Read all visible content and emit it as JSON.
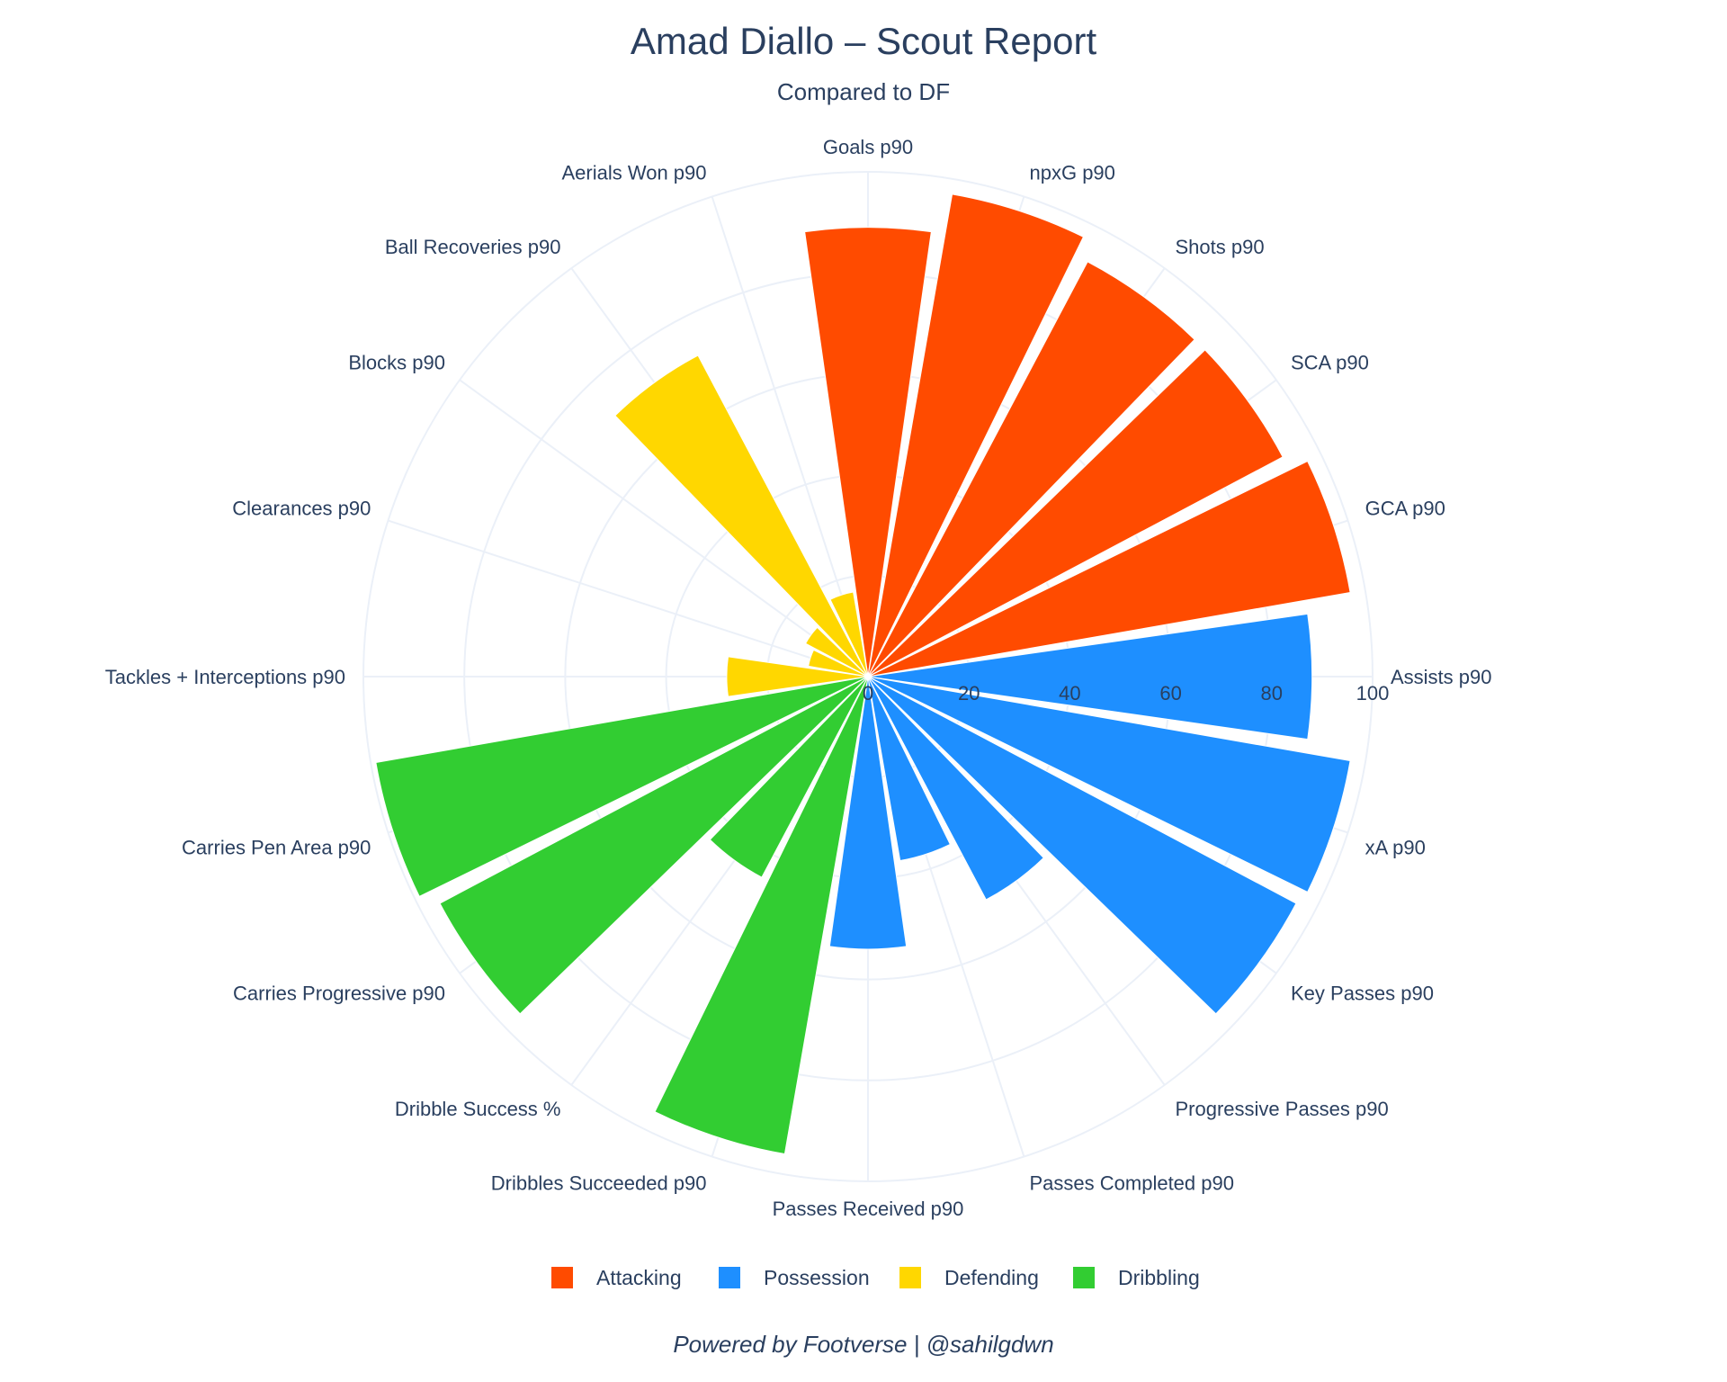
{
  "title": "Amad Diallo – Scout Report",
  "subtitle": "Compared to DF",
  "footer": "Powered by Footverse | @sahilgdwn",
  "colors": {
    "Attacking": "#ff4b00",
    "Possession": "#1e8fff",
    "Defending": "#ffd700",
    "Dribbling": "#32cd32",
    "grid": "#ebf0f8",
    "text": "#2a3f5f"
  },
  "chart_data": {
    "type": "barpolar",
    "radial_range": [
      0,
      100
    ],
    "radial_ticks": [
      "0",
      "20",
      "40",
      "60",
      "80",
      "100"
    ],
    "direction": "clockwise",
    "legend_placement": "bottom",
    "grid": true,
    "series": [
      {
        "name": "Attacking",
        "color": "#ff4b00"
      },
      {
        "name": "Possession",
        "color": "#1e8fff"
      },
      {
        "name": "Defending",
        "color": "#ffd700"
      },
      {
        "name": "Dribbling",
        "color": "#32cd32"
      }
    ],
    "metrics": [
      {
        "label": "Goals p90",
        "value": 89,
        "group": "Attacking"
      },
      {
        "label": "npxG p90",
        "value": 97,
        "group": "Attacking"
      },
      {
        "label": "Shots p90",
        "value": 93,
        "group": "Attacking"
      },
      {
        "label": "SCA p90",
        "value": 93,
        "group": "Attacking"
      },
      {
        "label": "GCA p90",
        "value": 97,
        "group": "Attacking"
      },
      {
        "label": "Assists p90",
        "value": 88,
        "group": "Possession"
      },
      {
        "label": "xA p90",
        "value": 97,
        "group": "Possession"
      },
      {
        "label": "Key Passes p90",
        "value": 96,
        "group": "Possession"
      },
      {
        "label": "Progressive Passes p90",
        "value": 50,
        "group": "Possession"
      },
      {
        "label": "Passes Completed p90",
        "value": 37,
        "group": "Possession"
      },
      {
        "label": "Passes Received p90",
        "value": 54,
        "group": "Possession"
      },
      {
        "label": "Dribbles Succeeded p90",
        "value": 96,
        "group": "Dribbling"
      },
      {
        "label": "Dribble Success %",
        "value": 45,
        "group": "Dribbling"
      },
      {
        "label": "Carries Progressive p90",
        "value": 96,
        "group": "Dribbling"
      },
      {
        "label": "Carries Pen Area p90",
        "value": 99,
        "group": "Dribbling"
      },
      {
        "label": "Tackles + Interceptions p90",
        "value": 28,
        "group": "Defending"
      },
      {
        "label": "Clearances p90",
        "value": 12,
        "group": "Defending"
      },
      {
        "label": "Blocks p90",
        "value": 14,
        "group": "Defending"
      },
      {
        "label": "Ball Recoveries p90",
        "value": 72,
        "group": "Defending"
      },
      {
        "label": "Aerials Won p90",
        "value": 17,
        "group": "Defending"
      }
    ]
  }
}
